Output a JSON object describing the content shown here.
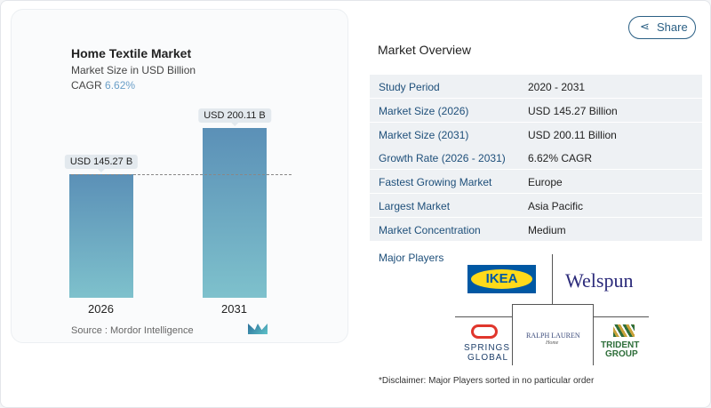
{
  "header": {
    "share_label": "Share"
  },
  "chart_data": {
    "type": "bar",
    "title": "Home Textile Market",
    "subtitle": "Market Size in USD Billion",
    "cagr_label": "CAGR",
    "cagr_value": "6.62%",
    "categories": [
      "2026",
      "2031"
    ],
    "values": [
      145.27,
      200.11
    ],
    "data_labels": [
      "USD 145.27 B",
      "USD 200.11 B"
    ],
    "reference_line": 145.27,
    "source": "Source :  Mordor Intelligence"
  },
  "overview": {
    "title": "Market Overview",
    "rows": [
      {
        "k": "Study Period",
        "v": "2020 - 2031"
      },
      {
        "k": "Market Size (2026)",
        "v": "USD 145.27 Billion"
      },
      {
        "k": "Market Size (2031)",
        "v": "USD 200.11 Billion"
      },
      {
        "k": "Growth Rate (2026 - 2031)",
        "v": "6.62% CAGR"
      },
      {
        "k": "Fastest Growing Market",
        "v": "Europe"
      },
      {
        "k": "Largest Market",
        "v": "Asia Pacific"
      },
      {
        "k": "Market Concentration",
        "v": "Medium"
      }
    ],
    "players_label": "Major Players",
    "players": [
      "IKEA",
      "Welspun",
      "RALPH LAUREN",
      "Home",
      "SPRINGS",
      "GLOBAL",
      "TRIDENT",
      "GROUP"
    ],
    "disclaimer": "*Disclaimer: Major Players sorted in no particular order"
  },
  "colors": {
    "accent": "#1e4f7a",
    "bar_top": "#5b90b7",
    "bar_bottom": "#7ec1cc"
  }
}
